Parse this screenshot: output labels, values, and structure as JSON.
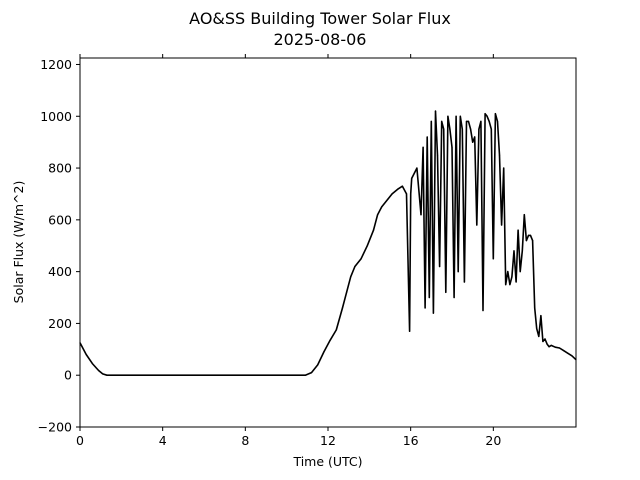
{
  "chart_data": {
    "type": "line",
    "title": "AO&SS Building Tower Solar Flux",
    "subtitle": "2025-08-06",
    "xlabel": "Time (UTC)",
    "ylabel": "Solar Flux (W/m^2)",
    "xlim": [
      0,
      24
    ],
    "ylim": [
      -200,
      1225
    ],
    "x_ticks": [
      0,
      4,
      8,
      12,
      16,
      20
    ],
    "x_tick_labels": [
      "0",
      "4",
      "8",
      "12",
      "16",
      "20"
    ],
    "y_ticks": [
      -200,
      0,
      200,
      400,
      600,
      800,
      1000,
      1200
    ],
    "y_tick_labels": [
      "−200",
      "0",
      "200",
      "400",
      "600",
      "800",
      "1000",
      "1200"
    ],
    "grid": false,
    "legend": "none",
    "series": [
      {
        "color": "#000000",
        "x": [
          0,
          0.3,
          0.6,
          0.9,
          1.1,
          1.3,
          2,
          4,
          6,
          8,
          10,
          10.9,
          11.2,
          11.5,
          11.8,
          12.1,
          12.4,
          12.7,
          12.9,
          13.1,
          13.3,
          13.6,
          13.9,
          14.2,
          14.4,
          14.6,
          14.9,
          15.1,
          15.4,
          15.6,
          15.8,
          15.95,
          16.0,
          16.05,
          16.3,
          16.5,
          16.6,
          16.7,
          16.8,
          16.9,
          17.0,
          17.1,
          17.2,
          17.3,
          17.4,
          17.5,
          17.6,
          17.7,
          17.8,
          17.9,
          18.0,
          18.1,
          18.2,
          18.3,
          18.4,
          18.5,
          18.6,
          18.7,
          18.8,
          18.9,
          19.0,
          19.1,
          19.2,
          19.3,
          19.4,
          19.5,
          19.6,
          19.7,
          19.8,
          19.9,
          20.0,
          20.1,
          20.2,
          20.3,
          20.4,
          20.5,
          20.6,
          20.7,
          20.8,
          20.9,
          21.0,
          21.1,
          21.2,
          21.3,
          21.4,
          21.5,
          21.6,
          21.7,
          21.8,
          21.9,
          22.0,
          22.1,
          22.2,
          22.3,
          22.4,
          22.5,
          22.6,
          22.7,
          22.8,
          23.0,
          23.2,
          23.4,
          23.6,
          23.8,
          24.0
        ],
        "y": [
          125,
          80,
          45,
          18,
          5,
          0,
          0,
          0,
          0,
          0,
          0,
          0,
          10,
          40,
          90,
          135,
          175,
          260,
          320,
          380,
          420,
          450,
          500,
          560,
          620,
          650,
          680,
          700,
          720,
          730,
          700,
          170,
          700,
          760,
          800,
          620,
          880,
          260,
          920,
          300,
          980,
          240,
          1020,
          850,
          420,
          980,
          950,
          320,
          1000,
          950,
          880,
          300,
          1000,
          400,
          1000,
          950,
          360,
          980,
          980,
          950,
          900,
          920,
          580,
          950,
          980,
          250,
          1010,
          1000,
          980,
          950,
          450,
          1010,
          980,
          850,
          580,
          800,
          350,
          400,
          350,
          380,
          480,
          360,
          560,
          400,
          480,
          620,
          520,
          540,
          540,
          520,
          260,
          180,
          150,
          230,
          130,
          140,
          120,
          110,
          115,
          108,
          105,
          95,
          85,
          75,
          60
        ]
      }
    ]
  }
}
